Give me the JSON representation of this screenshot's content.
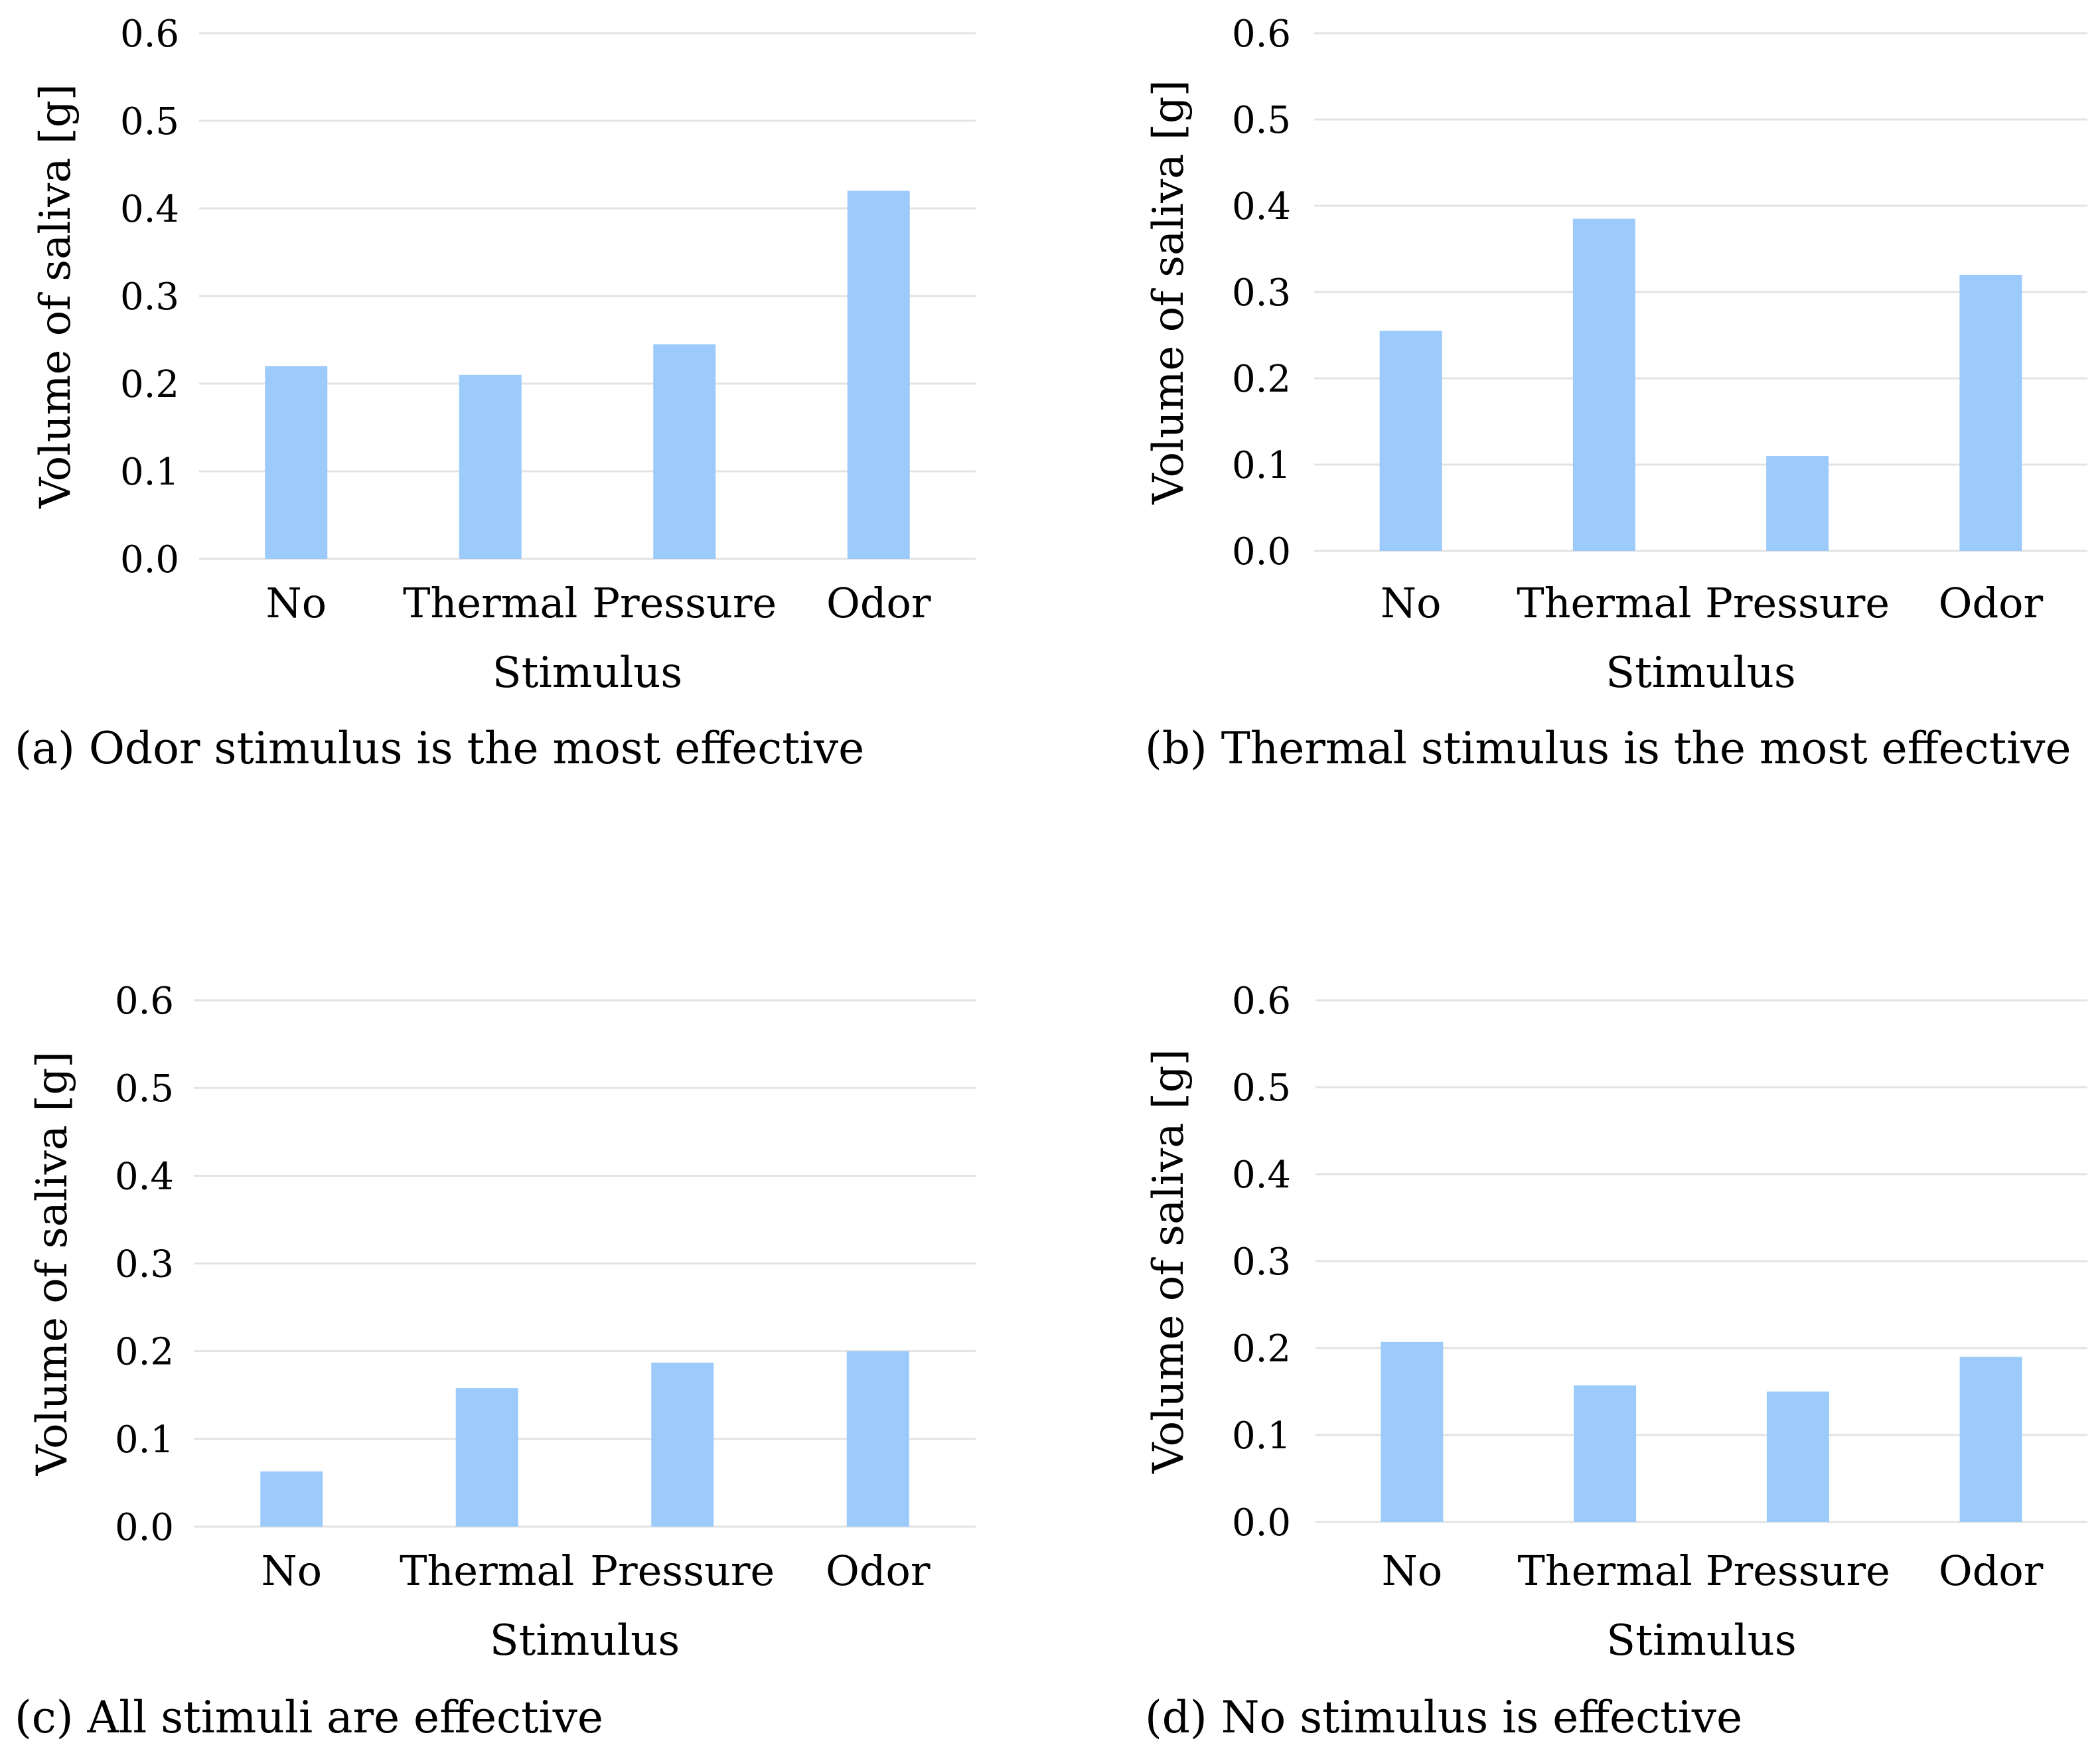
{
  "chart_data": [
    {
      "type": "bar",
      "panel": "a",
      "caption": "(a) Odor stimulus is the most effective",
      "xlabel": "Stimulus",
      "ylabel": "Volume of saliva [g]",
      "categories": [
        "No",
        "Thermal",
        "Pressure",
        "Odor"
      ],
      "values": [
        0.22,
        0.21,
        0.245,
        0.42
      ],
      "ylim": [
        0.0,
        0.6
      ],
      "yticks": [
        "0.0",
        "0.1",
        "0.2",
        "0.3",
        "0.4",
        "0.5",
        "0.6"
      ],
      "grid": true,
      "color": "#9ccbfb"
    },
    {
      "type": "bar",
      "panel": "b",
      "caption": "(b) Thermal stimulus is the most effective",
      "xlabel": "Stimulus",
      "ylabel": "Volume of saliva [g]",
      "categories": [
        "No",
        "Thermal",
        "Pressure",
        "Odor"
      ],
      "values": [
        0.255,
        0.385,
        0.11,
        0.32
      ],
      "ylim": [
        0.0,
        0.6
      ],
      "yticks": [
        "0.0",
        "0.1",
        "0.2",
        "0.3",
        "0.4",
        "0.5",
        "0.6"
      ],
      "grid": true,
      "color": "#9ccbfb"
    },
    {
      "type": "bar",
      "panel": "c",
      "caption": "(c) All stimuli are effective",
      "xlabel": "Stimulus",
      "ylabel": "Volume of saliva [g]",
      "categories": [
        "No",
        "Thermal",
        "Pressure",
        "Odor"
      ],
      "values": [
        0.063,
        0.158,
        0.187,
        0.2
      ],
      "ylim": [
        0.0,
        0.6
      ],
      "yticks": [
        "0.0",
        "0.1",
        "0.2",
        "0.3",
        "0.4",
        "0.5",
        "0.6"
      ],
      "grid": true,
      "color": "#9ccbfb"
    },
    {
      "type": "bar",
      "panel": "d",
      "caption": "(d) No stimulus is effective",
      "xlabel": "Stimulus",
      "ylabel": "Volume of saliva [g]",
      "categories": [
        "No",
        "Thermal",
        "Pressure",
        "Odor"
      ],
      "values": [
        0.207,
        0.157,
        0.15,
        0.19
      ],
      "ylim": [
        0.0,
        0.6
      ],
      "yticks": [
        "0.0",
        "0.1",
        "0.2",
        "0.3",
        "0.4",
        "0.5",
        "0.6"
      ],
      "grid": true,
      "color": "#9ccbfb"
    }
  ]
}
